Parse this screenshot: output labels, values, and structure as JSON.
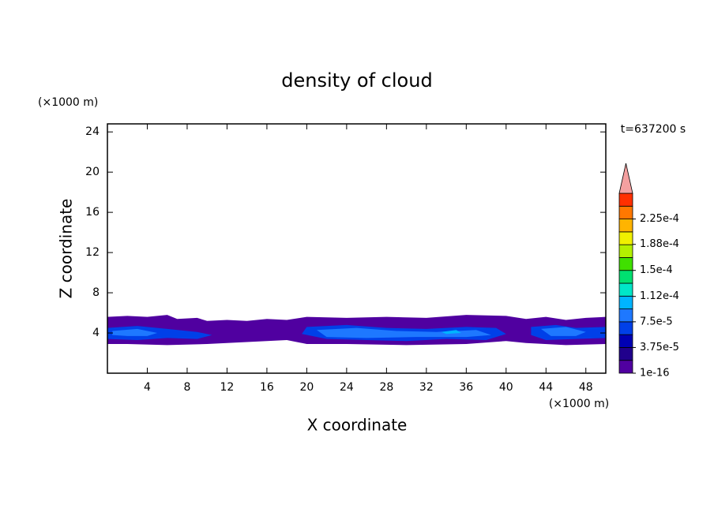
{
  "chart_data": {
    "type": "contour",
    "title": "density of cloud",
    "x_label": "X coordinate",
    "y_label": "Z coordinate",
    "x_unit": "(×1000 m)",
    "y_unit": "(×1000 m)",
    "time_label": "t=637200 s",
    "xlim": [
      0,
      50
    ],
    "ylim": [
      0,
      24.8
    ],
    "xticks": [
      4,
      8,
      12,
      16,
      20,
      24,
      28,
      32,
      36,
      40,
      44,
      48
    ],
    "yticks": [
      4,
      8,
      12,
      16,
      20,
      24
    ],
    "colorbar": {
      "clim": [
        0,
        0.0002625
      ],
      "levels": [
        1e-16,
        1.875e-05,
        3.75e-05,
        5.625e-05,
        7.5e-05,
        9.375e-05,
        0.0001125,
        0.00013125,
        0.00015,
        0.00016875,
        0.0001875,
        0.00020625,
        0.000225,
        0.00024375
      ],
      "colors": [
        "#5000a0",
        "#20008c",
        "#0000b4",
        "#0040e8",
        "#1e78ff",
        "#00b4ff",
        "#00e6c8",
        "#00e070",
        "#40e000",
        "#b4f000",
        "#f0f000",
        "#ffb400",
        "#ff7800",
        "#ff3000"
      ],
      "extend_color": "#f4a0a0",
      "ticks": [
        {
          "value": 1e-16,
          "label": "1e-16"
        },
        {
          "value": 3.75e-05,
          "label": "3.75e-5"
        },
        {
          "value": 7.5e-05,
          "label": "7.5e-5"
        },
        {
          "value": 0.000112,
          "label": "1.12e-4"
        },
        {
          "value": 0.00015,
          "label": "1.5e-4"
        },
        {
          "value": 0.000188,
          "label": "1.88e-4"
        },
        {
          "value": 0.000225,
          "label": "2.25e-4"
        }
      ]
    },
    "regions": [
      {
        "level": 1e-16,
        "x": [
          0,
          2,
          4,
          6,
          7,
          9,
          10,
          12,
          14,
          16,
          18,
          20,
          24,
          28,
          32,
          36,
          40,
          42,
          44,
          46,
          48,
          50,
          50,
          46,
          42,
          40,
          36,
          30,
          24,
          20,
          18,
          14,
          10,
          6,
          2,
          0
        ],
        "z": [
          5.6,
          5.7,
          5.6,
          5.8,
          5.4,
          5.5,
          5.2,
          5.3,
          5.2,
          5.4,
          5.3,
          5.6,
          5.5,
          5.6,
          5.5,
          5.8,
          5.7,
          5.4,
          5.6,
          5.3,
          5.5,
          5.6,
          2.9,
          2.8,
          3.0,
          3.2,
          2.9,
          2.8,
          2.9,
          2.9,
          3.3,
          3.1,
          2.9,
          2.8,
          2.9,
          2.9
        ]
      },
      {
        "level": 5.625e-05,
        "x": [
          0,
          3,
          6,
          9,
          10.5,
          9,
          6,
          3,
          0
        ],
        "z": [
          4.5,
          4.7,
          4.4,
          4.1,
          3.8,
          3.4,
          3.5,
          3.3,
          3.4
        ]
      },
      {
        "level": 5.625e-05,
        "x": [
          20,
          24,
          28,
          32,
          36,
          39,
          40,
          38,
          34,
          30,
          26,
          22,
          19.5
        ],
        "z": [
          4.6,
          4.8,
          4.5,
          4.4,
          4.6,
          4.5,
          3.9,
          3.3,
          3.4,
          3.2,
          3.3,
          3.4,
          3.9
        ]
      },
      {
        "level": 5.625e-05,
        "x": [
          42.5,
          45,
          47,
          50,
          50,
          47,
          44,
          42.5
        ],
        "z": [
          4.6,
          4.8,
          4.5,
          4.6,
          3.5,
          3.4,
          3.3,
          3.8
        ]
      },
      {
        "level": 7.5e-05,
        "x": [
          0.5,
          3,
          5,
          4,
          2,
          0.5
        ],
        "z": [
          4.2,
          4.4,
          4.0,
          3.7,
          3.7,
          3.8
        ]
      },
      {
        "level": 7.5e-05,
        "x": [
          21,
          25,
          29,
          33,
          37,
          38.5,
          36,
          31,
          26,
          22
        ],
        "z": [
          4.3,
          4.5,
          4.2,
          4.1,
          4.3,
          3.8,
          3.6,
          3.6,
          3.5,
          3.6
        ]
      },
      {
        "level": 7.5e-05,
        "x": [
          43.5,
          46,
          48,
          47,
          44.5
        ],
        "z": [
          4.4,
          4.6,
          4.1,
          3.7,
          3.7
        ]
      },
      {
        "level": 9.375e-05,
        "x": [
          33.5,
          35,
          35.5,
          34
        ],
        "z": [
          4.1,
          4.3,
          4.0,
          3.9
        ]
      }
    ]
  }
}
